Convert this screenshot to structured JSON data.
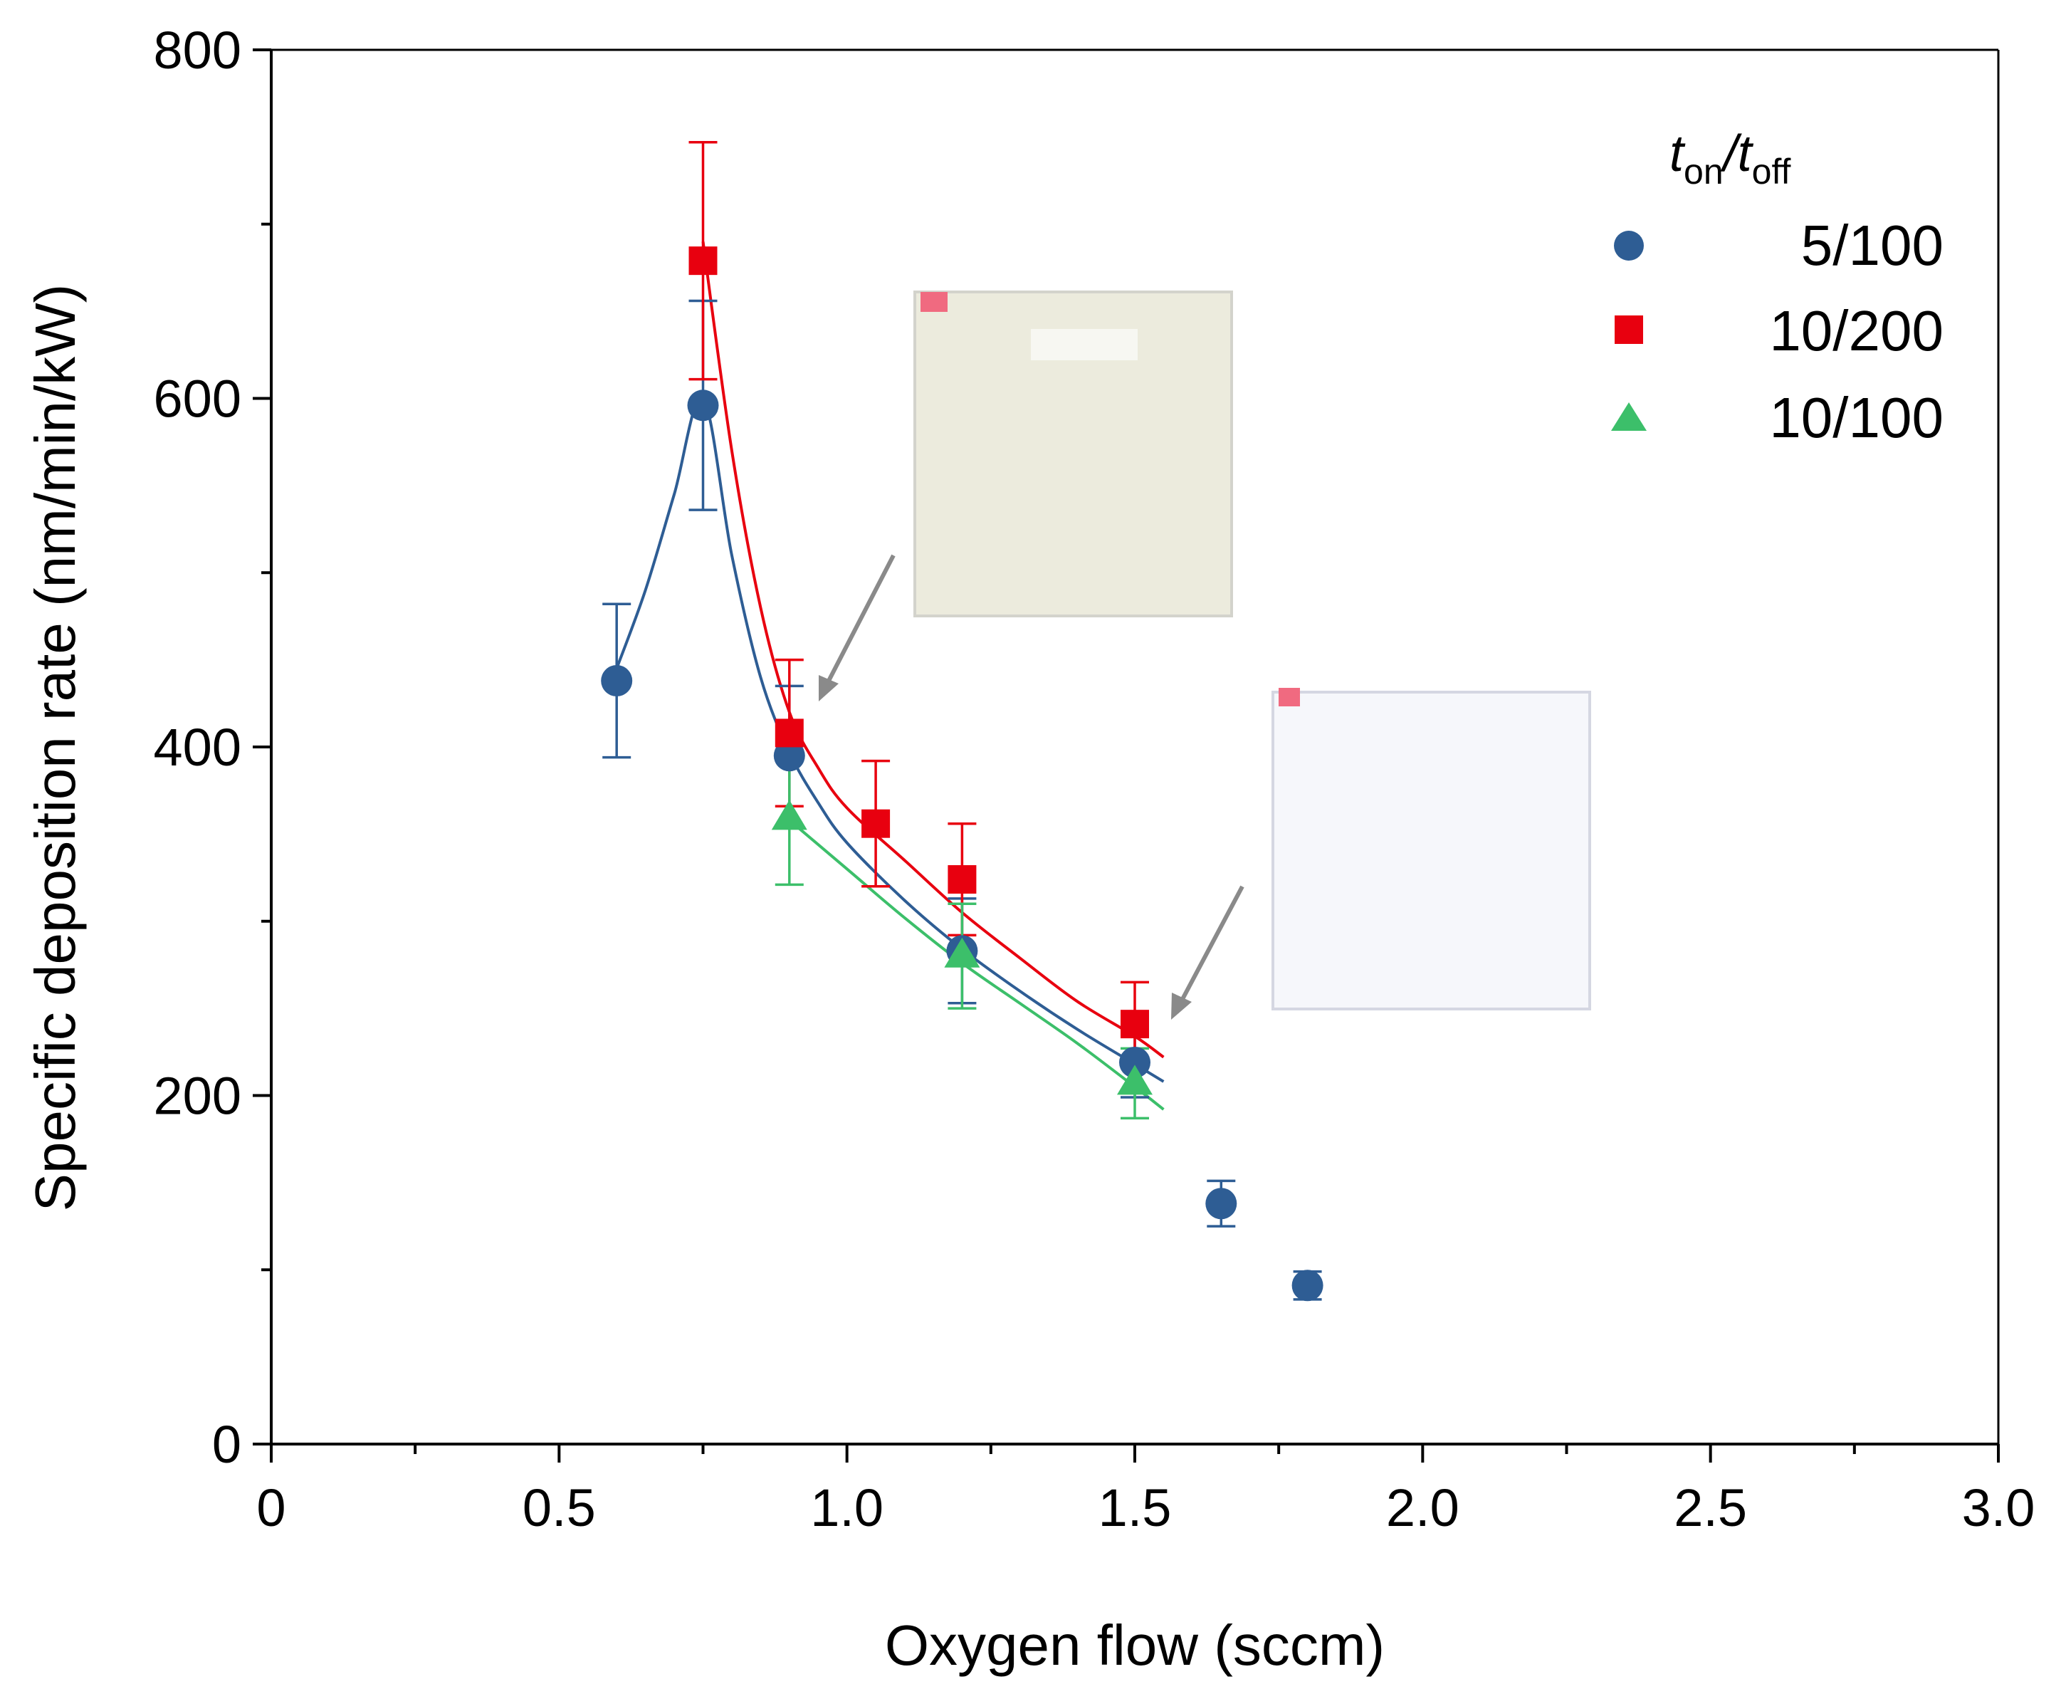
{
  "chart_data": {
    "type": "scatter",
    "title": "",
    "xlabel": "Oxygen flow (sccm)",
    "ylabel": "Specific deposition rate (nm/min/kW)",
    "xlim": [
      0,
      3.0
    ],
    "ylim": [
      0,
      800
    ],
    "x_ticks": [
      "0",
      "0.5",
      "1.0",
      "1.5",
      "2.0",
      "2.5",
      "3.0"
    ],
    "x_tick_values": [
      0,
      0.5,
      1.0,
      1.5,
      2.0,
      2.5,
      3.0
    ],
    "y_ticks": [
      "0",
      "200",
      "400",
      "600",
      "800"
    ],
    "y_tick_values": [
      0,
      200,
      400,
      600,
      800
    ],
    "legend": {
      "title_t": "t",
      "title_on": "on",
      "title_slash": "/",
      "title_off": "off",
      "position": "top-right"
    },
    "series": [
      {
        "name": "5/100",
        "marker": "circle",
        "color": "#2e5d94",
        "x": [
          0.6,
          0.75,
          0.9,
          1.2,
          1.5,
          1.65,
          1.8
        ],
        "y": [
          438,
          596,
          395,
          283,
          219,
          138,
          91
        ],
        "err": [
          44,
          60,
          40,
          30,
          20,
          13,
          8
        ]
      },
      {
        "name": "10/200",
        "marker": "square",
        "color": "#e8000f",
        "x": [
          0.75,
          0.9,
          1.05,
          1.2,
          1.5
        ],
        "y": [
          679,
          408,
          356,
          324,
          241
        ],
        "err": [
          68,
          42,
          36,
          32,
          24
        ]
      },
      {
        "name": "10/100",
        "marker": "triangle",
        "color": "#3cbf6a",
        "x": [
          0.9,
          1.2,
          1.5
        ],
        "y": [
          359,
          280,
          207
        ],
        "err": [
          38,
          30,
          20
        ]
      }
    ],
    "fit_curves": [
      {
        "name": "5/100 fit",
        "color": "#2e5d94",
        "x": [
          0.6,
          0.65,
          0.7,
          0.75,
          0.8,
          0.85,
          0.9,
          0.95,
          1.0,
          1.1,
          1.2,
          1.3,
          1.4,
          1.5,
          1.55
        ],
        "y": [
          445,
          490,
          545,
          600,
          510,
          440,
          397,
          368,
          345,
          312,
          284,
          260,
          238,
          218,
          208
        ]
      },
      {
        "name": "10/200 fit",
        "color": "#e8000f",
        "x": [
          0.75,
          0.8,
          0.85,
          0.9,
          0.95,
          1.0,
          1.1,
          1.2,
          1.3,
          1.4,
          1.5,
          1.55
        ],
        "y": [
          690,
          570,
          480,
          420,
          388,
          365,
          335,
          305,
          279,
          254,
          234,
          222
        ]
      },
      {
        "name": "10/100 fit",
        "color": "#3cbf6a",
        "x": [
          0.9,
          1.0,
          1.1,
          1.2,
          1.3,
          1.4,
          1.5,
          1.55
        ],
        "y": [
          358,
          330,
          302,
          276,
          253,
          230,
          205,
          192
        ]
      }
    ]
  }
}
